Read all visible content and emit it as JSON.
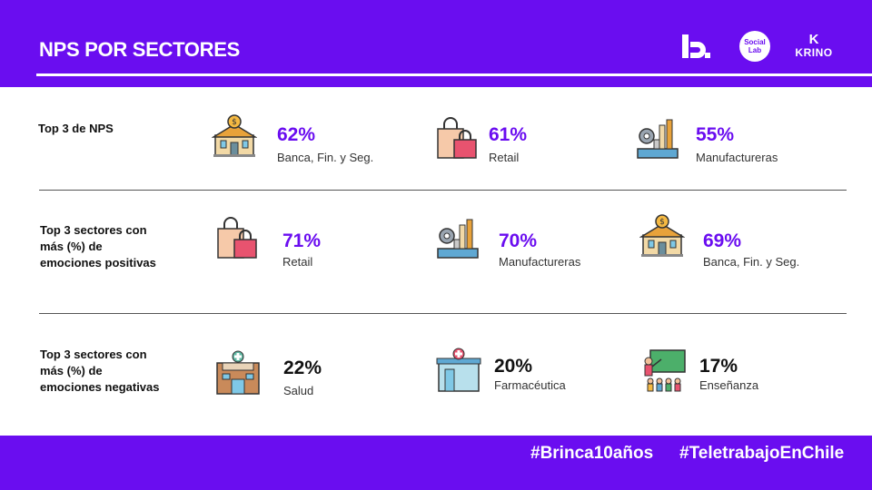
{
  "header": {
    "title": "NPS POR SECTORES"
  },
  "logos": {
    "social_lab_line1": "Social",
    "social_lab_line2": "Lab",
    "krino_mark": "K",
    "krino_text": "KRINO"
  },
  "colors": {
    "brand": "#6a0df0",
    "percent_purple": "#6a0df0",
    "percent_dark": "#111111"
  },
  "rows": [
    {
      "label": "Top 3 de NPS",
      "items": [
        {
          "percent": "62%",
          "sector": "Banca, Fin. y Seg.",
          "icon": "bank-icon"
        },
        {
          "percent": "61%",
          "sector": "Retail",
          "icon": "shopping-bag-icon"
        },
        {
          "percent": "55%",
          "sector": "Manufactureras",
          "icon": "factory-icon"
        }
      ]
    },
    {
      "label_lines": [
        "Top 3 sectores con",
        "más (%) de",
        "emociones positivas"
      ],
      "items": [
        {
          "percent": "71%",
          "sector": "Retail",
          "icon": "shopping-bag-icon"
        },
        {
          "percent": "70%",
          "sector": "Manufactureras",
          "icon": "factory-icon"
        },
        {
          "percent": "69%",
          "sector": "Banca, Fin. y Seg.",
          "icon": "bank-icon"
        }
      ]
    },
    {
      "label_lines": [
        "Top 3 sectores con",
        "más (%) de",
        "emociones negativas"
      ],
      "items": [
        {
          "percent": "22%",
          "sector": "Salud",
          "icon": "hospital-icon"
        },
        {
          "percent": "20%",
          "sector": "Farmacéutica",
          "icon": "pharmacy-icon"
        },
        {
          "percent": "17%",
          "sector": "Enseñanza",
          "icon": "teacher-icon"
        }
      ]
    }
  ],
  "footer": {
    "tag1": "#Brinca10años",
    "tag2": "#TeletrabajoEnChile"
  }
}
